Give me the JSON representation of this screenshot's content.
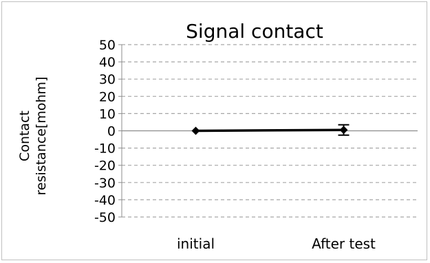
{
  "chart_data": {
    "type": "line",
    "title": "Signal contact",
    "ylabel_line1": "Contact",
    "ylabel_line2": "resistance[mohm]",
    "categories": [
      "initial",
      "After test"
    ],
    "series": [
      {
        "values": [
          0,
          0.5
        ],
        "error_plus": [
          0,
          3
        ],
        "error_minus": [
          0,
          3
        ],
        "marker": "diamond"
      }
    ],
    "ylim": [
      -50,
      50
    ],
    "ytick_step": 10,
    "yticks": [
      "50",
      "40",
      "30",
      "20",
      "10",
      "0",
      "-10",
      "-20",
      "-30",
      "-40",
      "-50"
    ],
    "grid": "dashed",
    "colors": {
      "line": "#000000",
      "grid": "#a6a6a6",
      "zero_axis": "#8c8c8c",
      "border": "#bfbfbf"
    }
  }
}
